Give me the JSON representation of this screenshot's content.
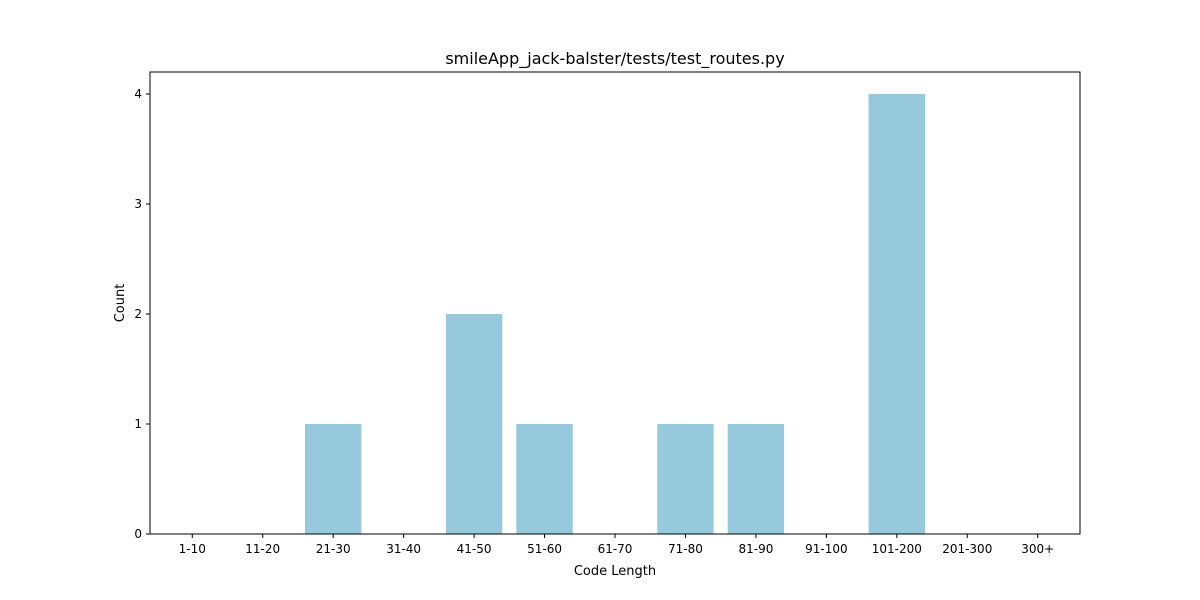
{
  "chart_data": {
    "type": "bar",
    "title": "smileApp_jack-balster/tests/test_routes.py",
    "xlabel": "Code Length",
    "ylabel": "Count",
    "categories": [
      "1-10",
      "11-20",
      "21-30",
      "31-40",
      "41-50",
      "51-60",
      "61-70",
      "71-80",
      "81-90",
      "91-100",
      "101-200",
      "201-300",
      "300+"
    ],
    "values": [
      0,
      0,
      1,
      0,
      2,
      1,
      0,
      1,
      1,
      0,
      4,
      0,
      0
    ],
    "yticks": [
      0,
      1,
      2,
      3,
      4
    ],
    "ylim": [
      0,
      4.2
    ],
    "bar_color": "#96c9dc",
    "grid": false,
    "legend": "none"
  }
}
